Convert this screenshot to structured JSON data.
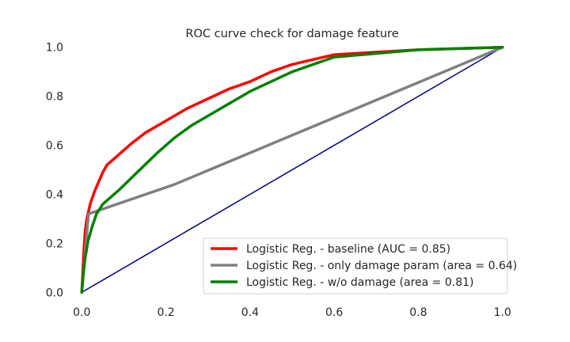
{
  "chart_data": {
    "type": "line",
    "title": "ROC curve check for damage feature",
    "xlabel": "",
    "ylabel": "",
    "xlim": [
      -0.025,
      1.025
    ],
    "ylim": [
      -0.025,
      1.025
    ],
    "grid": false,
    "legend_position": "lower-right",
    "xticks": [
      "0.0",
      "0.2",
      "0.4",
      "0.6",
      "0.8",
      "1.0"
    ],
    "yticks": [
      "0.0",
      "0.2",
      "0.4",
      "0.6",
      "0.8",
      "1.0"
    ],
    "diagonal": {
      "x": [
        0,
        1
      ],
      "y": [
        0,
        1
      ],
      "color": "#000080"
    },
    "series": [
      {
        "name": "Logistic Reg. - baseline (AUC = 0.85)",
        "color": "#ff0000",
        "x": [
          0,
          0.003,
          0.005,
          0.008,
          0.012,
          0.02,
          0.03,
          0.04,
          0.05,
          0.06,
          0.08,
          0.1,
          0.12,
          0.15,
          0.18,
          0.2,
          0.25,
          0.3,
          0.35,
          0.4,
          0.45,
          0.5,
          0.55,
          0.6,
          0.65,
          0.7,
          0.8,
          0.9,
          1.0
        ],
        "y": [
          0,
          0.1,
          0.17,
          0.25,
          0.3,
          0.36,
          0.41,
          0.45,
          0.49,
          0.52,
          0.55,
          0.58,
          0.61,
          0.65,
          0.68,
          0.7,
          0.75,
          0.79,
          0.83,
          0.86,
          0.9,
          0.93,
          0.95,
          0.97,
          0.975,
          0.98,
          0.99,
          0.995,
          1.0
        ]
      },
      {
        "name": "Logistic Reg. - only damage param (area = 0.64)",
        "color": "#808080",
        "x": [
          0,
          0.016,
          0.22,
          1.0
        ],
        "y": [
          0,
          0.32,
          0.44,
          1.0
        ]
      },
      {
        "name": "Logistic Reg. - w/o damage (area = 0.81)",
        "color": "#008000",
        "x": [
          0,
          0.004,
          0.008,
          0.015,
          0.025,
          0.035,
          0.05,
          0.07,
          0.09,
          0.12,
          0.15,
          0.18,
          0.22,
          0.26,
          0.3,
          0.35,
          0.4,
          0.45,
          0.5,
          0.55,
          0.6,
          0.7,
          0.8,
          0.9,
          1.0
        ],
        "y": [
          0,
          0.08,
          0.14,
          0.21,
          0.27,
          0.32,
          0.36,
          0.39,
          0.42,
          0.47,
          0.52,
          0.57,
          0.63,
          0.68,
          0.72,
          0.77,
          0.82,
          0.86,
          0.9,
          0.93,
          0.96,
          0.975,
          0.99,
          0.995,
          1.0
        ]
      }
    ]
  }
}
